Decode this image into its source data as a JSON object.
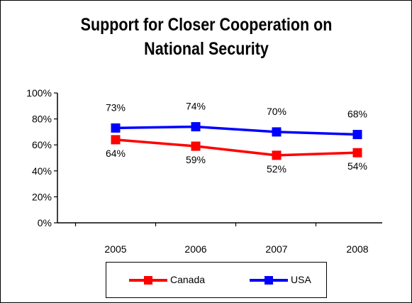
{
  "chart_data": {
    "type": "line",
    "title": "Support for Closer Cooperation on National Security",
    "xlabel": "",
    "ylabel": "",
    "categories": [
      "2005",
      "2006",
      "2007",
      "2008"
    ],
    "ylim": [
      0,
      100
    ],
    "yticks": [
      "0%",
      "20%",
      "40%",
      "60%",
      "80%",
      "100%"
    ],
    "grid": false,
    "legend": "bottom",
    "series": [
      {
        "name": "Canada",
        "color": "#ff0000",
        "values": [
          64,
          59,
          52,
          54
        ],
        "labels": [
          "64%",
          "59%",
          "52%",
          "54%"
        ],
        "label_position": "below"
      },
      {
        "name": "USA",
        "color": "#0000ff",
        "values": [
          73,
          74,
          70,
          68
        ],
        "labels": [
          "73%",
          "74%",
          "70%",
          "68%"
        ],
        "label_position": "above"
      }
    ]
  }
}
